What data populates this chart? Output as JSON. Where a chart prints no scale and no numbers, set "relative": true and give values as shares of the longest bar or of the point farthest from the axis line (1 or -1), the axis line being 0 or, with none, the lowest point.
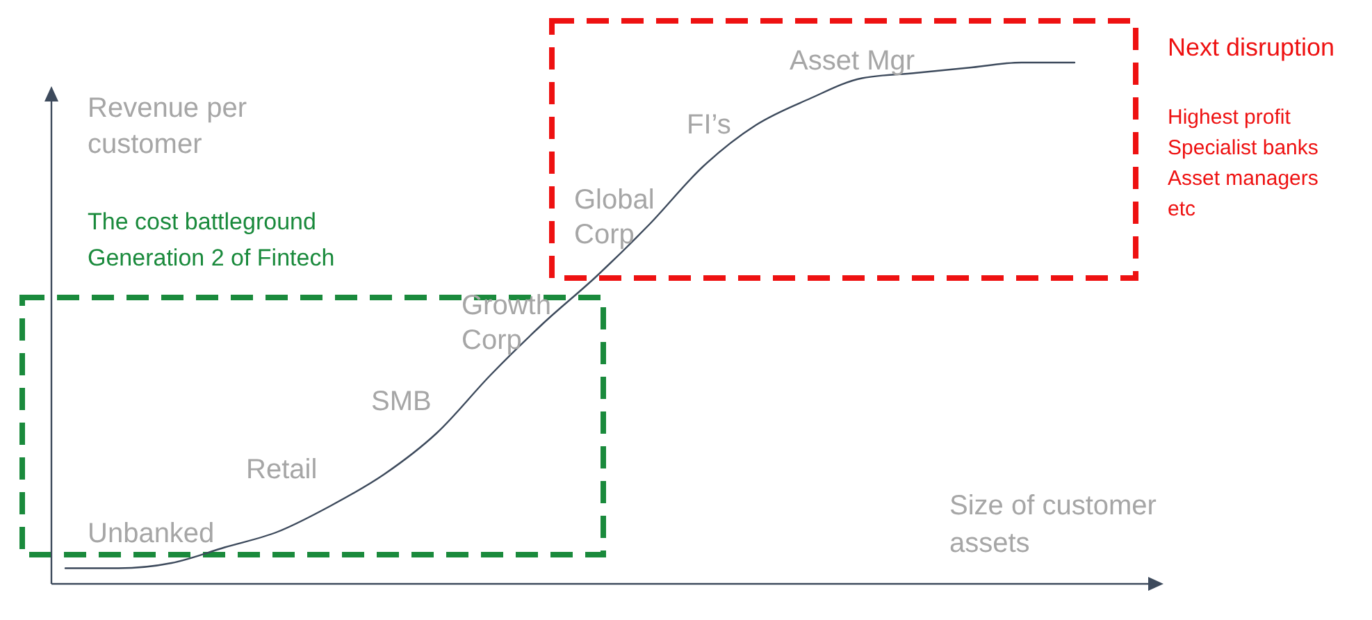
{
  "chart_data": {
    "type": "line",
    "relative": true,
    "xlabel": "Size of customer assets",
    "ylabel": "Revenue per customer",
    "categories": [
      null,
      null,
      null,
      null,
      null,
      null,
      null,
      null,
      null,
      null,
      null,
      null,
      null,
      null,
      null,
      null,
      null,
      null,
      null,
      null
    ],
    "series": [
      {
        "color": "#3d4a5c",
        "values": [
          0.03,
          0.03,
          0.04,
          0.07,
          0.1,
          0.15,
          0.21,
          0.29,
          0.4,
          0.5,
          0.59,
          0.69,
          0.8,
          0.88,
          0.93,
          0.97,
          0.98,
          0.99,
          1,
          1
        ]
      }
    ],
    "annotations": [
      "Unbanked",
      "Retail",
      "SMB",
      "Growth Corp",
      "Global Corp",
      "FI’s",
      "Asset Mgr",
      "The cost battleground",
      "Generation 2 of Fintech",
      "Next disruption",
      "Highest profit",
      "Specialist banks",
      "Asset managers",
      "etc"
    ]
  }
}
